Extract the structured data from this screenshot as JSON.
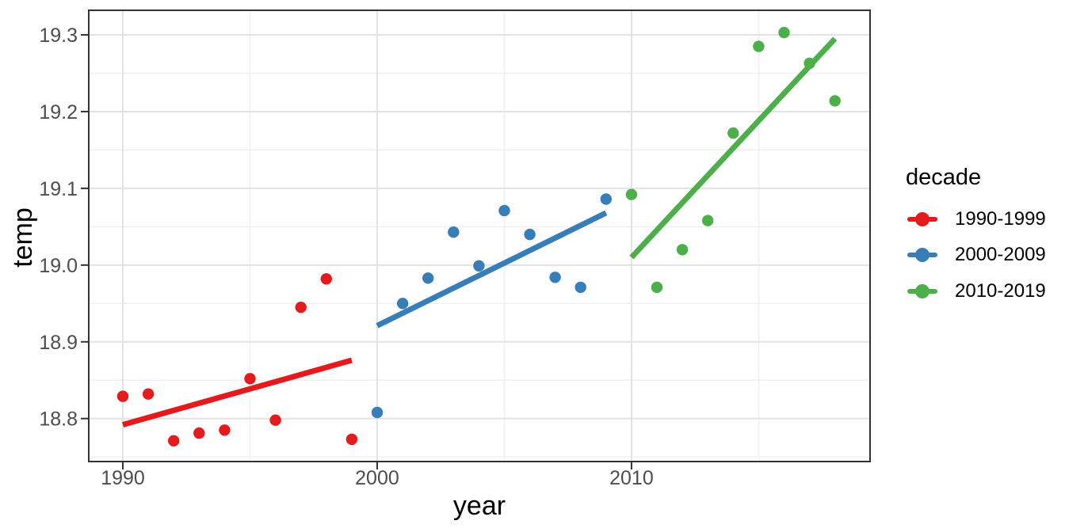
{
  "chart_data": {
    "type": "scatter",
    "title": "",
    "xlabel": "year",
    "ylabel": "temp",
    "legend_title": "decade",
    "legend_position": "right",
    "grid": true,
    "xlim": [
      1988.66,
      2019.38
    ],
    "ylim": [
      18.744,
      19.332
    ],
    "x_ticks": [
      {
        "v": 1990,
        "label": "1990"
      },
      {
        "v": 2000,
        "label": "2000"
      },
      {
        "v": 2010,
        "label": "2010"
      }
    ],
    "y_ticks": [
      {
        "v": 18.8,
        "label": "18.8"
      },
      {
        "v": 18.9,
        "label": "18.9"
      },
      {
        "v": 19.0,
        "label": "19.0"
      },
      {
        "v": 19.1,
        "label": "19.1"
      },
      {
        "v": 19.2,
        "label": "19.2"
      },
      {
        "v": 19.3,
        "label": "19.3"
      }
    ],
    "x_minor": [
      1995,
      2005,
      2015
    ],
    "y_minor": [
      18.75,
      18.85,
      18.95,
      19.05,
      19.15,
      19.25
    ],
    "series": [
      {
        "name": "1990-1999",
        "color": "#E41A1C",
        "x": [
          1990,
          1991,
          1992,
          1993,
          1994,
          1995,
          1996,
          1997,
          1998,
          1999
        ],
        "y": [
          18.829,
          18.832,
          18.771,
          18.781,
          18.785,
          18.852,
          18.798,
          18.945,
          18.982,
          18.773
        ],
        "trend": {
          "x1": 1990,
          "y1": 18.792,
          "x2": 1999,
          "y2": 18.876
        }
      },
      {
        "name": "2000-2009",
        "color": "#377EB8",
        "x": [
          2000,
          2001,
          2002,
          2003,
          2004,
          2005,
          2006,
          2007,
          2008,
          2009
        ],
        "y": [
          18.808,
          18.95,
          18.983,
          19.043,
          18.999,
          19.071,
          19.04,
          18.984,
          18.971,
          19.086
        ],
        "trend": {
          "x1": 2000,
          "y1": 18.921,
          "x2": 2009,
          "y2": 19.068
        }
      },
      {
        "name": "2010-2019",
        "color": "#4DAF4A",
        "x": [
          2010,
          2011,
          2012,
          2013,
          2014,
          2015,
          2016,
          2017,
          2018
        ],
        "y": [
          19.092,
          18.971,
          19.02,
          19.058,
          19.172,
          19.285,
          19.303,
          19.263,
          19.214
        ],
        "trend": {
          "x1": 2010,
          "y1": 19.01,
          "x2": 2018,
          "y2": 19.295
        }
      }
    ],
    "colors": {
      "grid_major": "#E3E3E3",
      "grid_minor": "#F0F0F0",
      "panel_border": "#333333",
      "tick": "#333333",
      "tick_label": "#4D4D4D",
      "title": "#000000",
      "background": "#FFFFFF"
    }
  }
}
